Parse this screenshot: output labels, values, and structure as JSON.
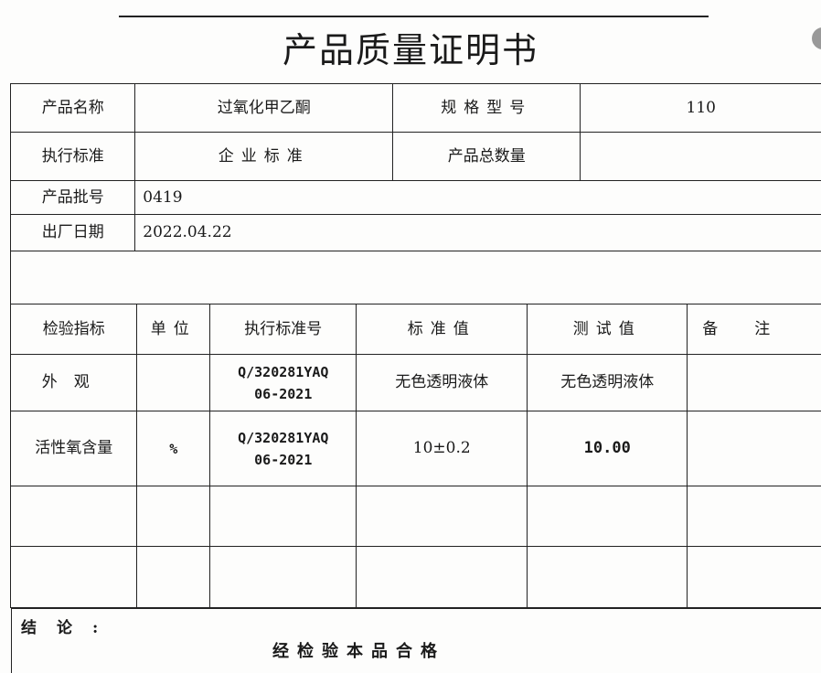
{
  "title": "产品质量证明书",
  "info": {
    "product_name_label": "产品名称",
    "product_name": "过氧化甲乙酮",
    "spec_label": "规格型号",
    "spec": "110",
    "standard_label": "执行标准",
    "standard": "企业标准",
    "total_label": "产品总数量",
    "total": "",
    "batch_label": "产品批号",
    "batch": "0419",
    "date_label": "出厂日期",
    "date": "2022.04.22"
  },
  "inspection": {
    "headers": [
      "检验指标",
      "单位",
      "执行标准号",
      "标准值",
      "测试值",
      "备注"
    ],
    "rows": [
      {
        "item": "外观",
        "unit": "",
        "std_no": "Q/320281YAQ 06-2021",
        "std_value": "无色透明液体",
        "test_value": "无色透明液体",
        "note": ""
      },
      {
        "item": "活性氧含量",
        "unit": "%",
        "std_no": "Q/320281YAQ 06-2021",
        "std_value": "10±0.2",
        "test_value": "10.00",
        "note": ""
      }
    ]
  },
  "conclusion": {
    "label": "结论:",
    "text": "经检验本品合格"
  }
}
